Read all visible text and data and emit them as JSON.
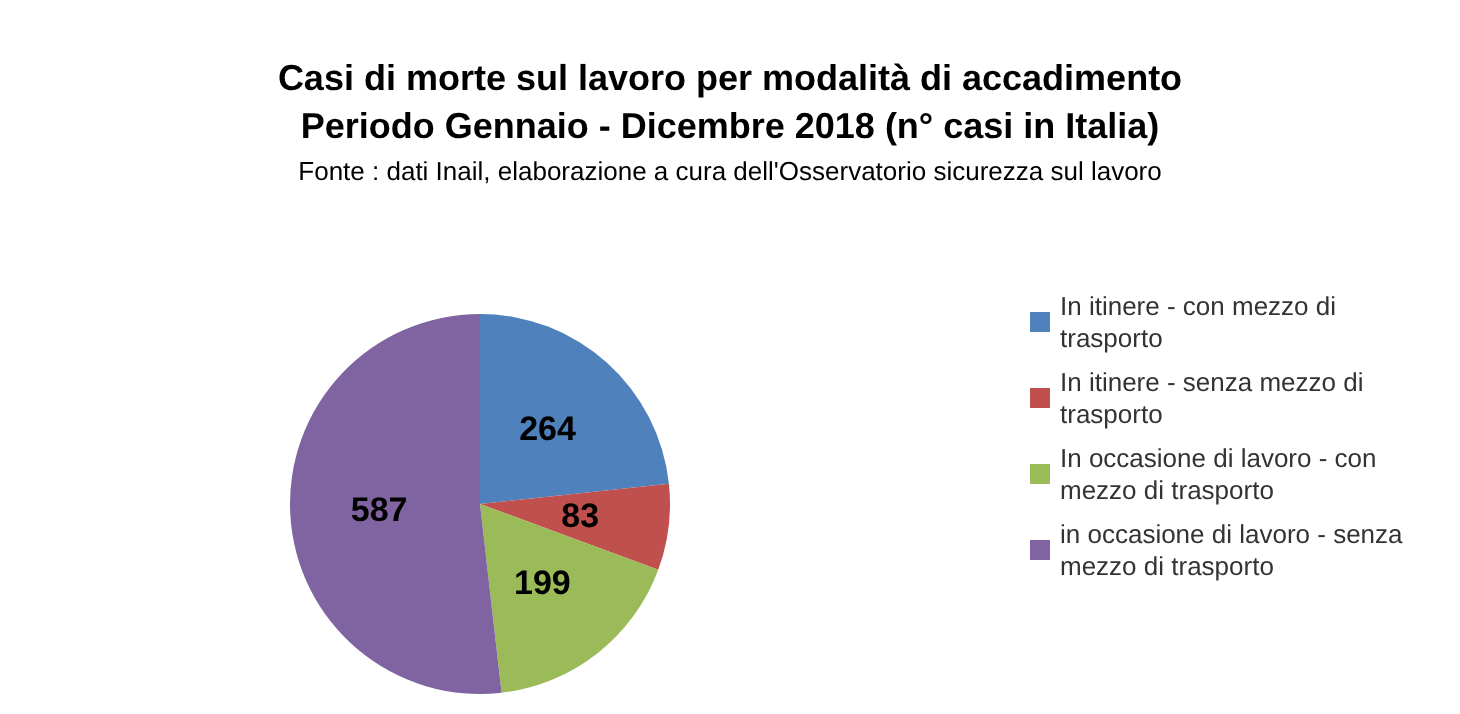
{
  "chart_data": {
    "type": "pie",
    "title": "Casi di morte sul lavoro per modalità di accadimento\nPeriodo Gennaio - Dicembre 2018 (n° casi in Italia)",
    "subtitle": "Fonte : dati Inail, elaborazione a cura dell'Osservatorio sicurezza sul lavoro",
    "categories": [
      "In itinere - con mezzo di trasporto",
      "In itinere - senza mezzo di trasporto",
      "In occasione di lavoro - con mezzo di trasporto",
      "in occasione di lavoro - senza mezzo di trasporto"
    ],
    "values": [
      264,
      83,
      199,
      587
    ],
    "colors": [
      "#4f81bd",
      "#c0504d",
      "#9bbb59",
      "#8064a2"
    ],
    "data_labels": true,
    "legend": "right"
  }
}
